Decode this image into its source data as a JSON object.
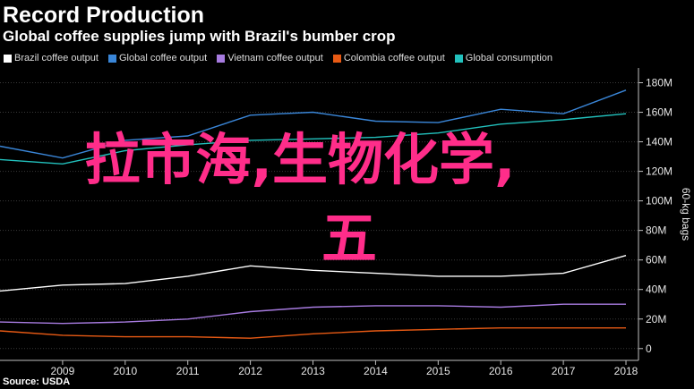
{
  "header": {
    "title": "Record Production",
    "subtitle": "Global coffee supplies jump with Brazil's bumber crop"
  },
  "footer": {
    "source": "Source: USDA"
  },
  "overlay": {
    "line1": "拉市海,生物化学,",
    "line2": "五"
  },
  "chart_data": {
    "type": "line",
    "x": [
      2008,
      2009,
      2010,
      2011,
      2012,
      2013,
      2014,
      2015,
      2016,
      2017,
      2018
    ],
    "xticks": [
      "2009",
      "2010",
      "2011",
      "2012",
      "2013",
      "2014",
      "2015",
      "2016",
      "2017",
      "2018"
    ],
    "xlim": [
      2008,
      2018.2
    ],
    "ylim": [
      -8,
      190
    ],
    "yticks": [
      0,
      20,
      40,
      60,
      80,
      100,
      120,
      140,
      160,
      180
    ],
    "ytick_labels": [
      "0",
      "20M",
      "40M",
      "60M",
      "80M",
      "100M",
      "120M",
      "140M",
      "160M",
      "180M"
    ],
    "ylabel": "60-kg bags",
    "y_axis_position": "right",
    "legend_position": "top-left",
    "grid": true,
    "series": [
      {
        "name": "Brazil coffee output",
        "color": "#ffffff",
        "values": [
          39,
          43,
          44,
          49,
          56,
          53,
          51,
          49,
          49,
          51,
          63
        ]
      },
      {
        "name": "Global coffee output",
        "color": "#3a86d8",
        "values": [
          137,
          129,
          141,
          144,
          158,
          160,
          154,
          153,
          162,
          159,
          175
        ]
      },
      {
        "name": "Vietnam coffee output",
        "color": "#a77be0",
        "values": [
          18,
          17,
          18,
          20,
          25,
          28,
          29,
          29,
          28,
          30,
          30
        ]
      },
      {
        "name": "Colombia coffee output",
        "color": "#e85a14",
        "values": [
          12,
          9,
          8,
          8,
          7,
          10,
          12,
          13,
          14,
          14,
          14
        ]
      },
      {
        "name": "Global consumption",
        "color": "#22c1bd",
        "values": [
          128,
          125,
          134,
          138,
          141,
          142,
          143,
          146,
          152,
          155,
          159
        ]
      }
    ]
  }
}
